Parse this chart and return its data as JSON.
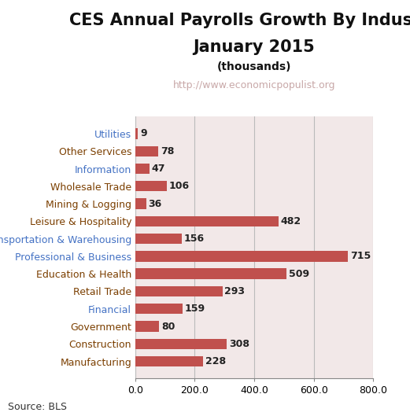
{
  "title_line1": "CES Annual Payrolls Growth By Industry",
  "title_line2": "January 2015",
  "subtitle": "(thousands)",
  "watermark": "http://www.economicpopulist.org",
  "source": "Source: BLS",
  "categories": [
    "Utilities",
    "Other Services",
    "Information",
    "Wholesale Trade",
    "Mining & Logging",
    "Leisure & Hospitality",
    "Transportation & Warehousing",
    "Professional & Business",
    "Education & Health",
    "Retail Trade",
    "Financial",
    "Government",
    "Construction",
    "Manufacturing"
  ],
  "values": [
    9,
    78,
    47,
    106,
    36,
    482,
    156,
    715,
    509,
    293,
    159,
    80,
    308,
    228
  ],
  "bar_color": "#c0504d",
  "figure_bg_color": "#ffffff",
  "plot_bg_color": "#f2e8e8",
  "xlim": [
    0,
    800
  ],
  "xticks": [
    0.0,
    200.0,
    400.0,
    600.0,
    800.0
  ],
  "grid_color": "#bbbbbb",
  "title_fontsize": 15,
  "subtitle_fontsize": 10,
  "watermark_fontsize": 9,
  "source_fontsize": 9,
  "label_fontsize": 9,
  "tick_label_fontsize": 9,
  "category_label_fontsize": 9,
  "blue_labels": [
    "Utilities",
    "Information",
    "Transportation & Warehousing",
    "Professional & Business",
    "Financial"
  ],
  "brown_labels": [
    "Other Services",
    "Wholesale Trade",
    "Mining & Logging",
    "Leisure & Hospitality",
    "Education & Health",
    "Retail Trade",
    "Government",
    "Construction",
    "Manufacturing"
  ],
  "blue_color": "#4472c4",
  "brown_color": "#7b3f00"
}
